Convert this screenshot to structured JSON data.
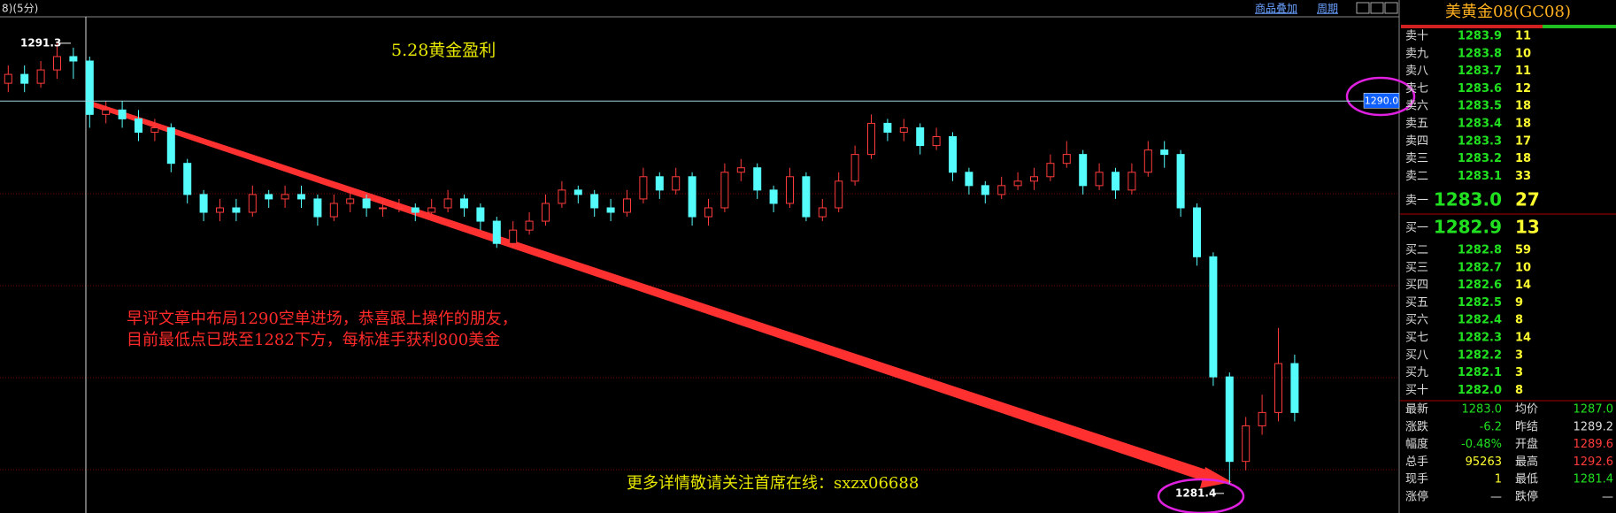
{
  "chart_data": {
    "type": "candlestick",
    "title": "5.28黄金盈利",
    "period": "8)(5分)",
    "annotations": [
      "早评文章中布局1290空单进场，恭喜跟上操作的朋友，",
      "目前最低点已跌至1282下方，每标准手获利800美金"
    ],
    "footer": "更多详情敬请关注首席在线：sxzx06688",
    "links": [
      "商品叠加",
      "周期"
    ],
    "high_mark": 1291.3,
    "low_mark": 1281.4,
    "price_line": {
      "value": 1290,
      "label": "1290.0"
    },
    "up_color": "#ff3b3b",
    "down_color": "#54fcfc",
    "ylim": [
      1280.9,
      1291.9
    ],
    "open": [
      1290.4,
      1290.6,
      1290.4,
      1290.7,
      1291.0,
      1290.9,
      1289.7,
      1289.8,
      1289.6,
      1289.3,
      1289.4,
      1288.6,
      1287.9,
      1287.5,
      1287.6,
      1287.5,
      1287.9,
      1287.8,
      1287.9,
      1287.8,
      1287.4,
      1287.7,
      1287.8,
      1287.6,
      1287.6,
      1287.6,
      1287.5,
      1287.6,
      1287.8,
      1287.6,
      1287.3,
      1286.8,
      1287.1,
      1287.3,
      1287.7,
      1288.0,
      1287.9,
      1287.6,
      1287.5,
      1287.8,
      1288.3,
      1288.0,
      1288.3,
      1287.4,
      1287.6,
      1288.4,
      1288.5,
      1288.0,
      1287.7,
      1288.3,
      1287.4,
      1287.6,
      1288.2,
      1288.8,
      1289.5,
      1289.3,
      1289.4,
      1289.0,
      1289.2,
      1288.4,
      1288.1,
      1287.9,
      1288.1,
      1288.2,
      1288.3,
      1288.6,
      1288.8,
      1288.1,
      1288.4,
      1288.0,
      1288.4,
      1288.9,
      1288.8,
      1287.6,
      1286.5,
      1283.8,
      1281.9,
      1282.7,
      1283.0,
      1284.1
    ],
    "high": [
      1290.8,
      1290.8,
      1290.9,
      1291.3,
      1291.2,
      1291.0,
      1290.0,
      1290.0,
      1289.8,
      1289.6,
      1289.5,
      1288.7,
      1288.0,
      1287.8,
      1287.8,
      1288.1,
      1288.0,
      1288.1,
      1288.1,
      1287.9,
      1287.9,
      1288.0,
      1287.9,
      1287.8,
      1287.8,
      1287.7,
      1287.8,
      1288.0,
      1287.9,
      1287.7,
      1287.4,
      1287.3,
      1287.5,
      1287.9,
      1288.2,
      1288.1,
      1288.0,
      1287.8,
      1288.0,
      1288.5,
      1288.4,
      1288.5,
      1288.4,
      1287.8,
      1288.6,
      1288.7,
      1288.6,
      1288.1,
      1288.5,
      1288.4,
      1287.8,
      1288.4,
      1289.0,
      1289.7,
      1289.6,
      1289.6,
      1289.5,
      1289.4,
      1289.3,
      1288.5,
      1288.2,
      1288.3,
      1288.4,
      1288.5,
      1288.8,
      1289.1,
      1288.9,
      1288.6,
      1288.5,
      1288.6,
      1289.1,
      1289.1,
      1288.9,
      1287.7,
      1286.6,
      1283.9,
      1282.9,
      1283.4,
      1284.9,
      1284.3
    ],
    "low": [
      1290.2,
      1290.2,
      1290.3,
      1290.5,
      1290.5,
      1289.4,
      1289.5,
      1289.4,
      1289.1,
      1289.1,
      1288.4,
      1287.7,
      1287.3,
      1287.3,
      1287.3,
      1287.4,
      1287.6,
      1287.6,
      1287.6,
      1287.2,
      1287.3,
      1287.5,
      1287.4,
      1287.4,
      1287.5,
      1287.3,
      1287.4,
      1287.5,
      1287.4,
      1287.1,
      1286.7,
      1286.7,
      1287.0,
      1287.2,
      1287.6,
      1287.7,
      1287.4,
      1287.3,
      1287.4,
      1287.7,
      1287.8,
      1287.9,
      1287.2,
      1287.2,
      1287.5,
      1288.2,
      1287.8,
      1287.5,
      1287.6,
      1287.3,
      1287.3,
      1287.5,
      1288.1,
      1288.7,
      1289.1,
      1289.1,
      1288.8,
      1288.9,
      1288.2,
      1287.9,
      1287.7,
      1287.8,
      1288.0,
      1288.0,
      1288.2,
      1288.5,
      1287.9,
      1288.0,
      1287.8,
      1287.9,
      1288.3,
      1288.5,
      1287.4,
      1286.3,
      1283.6,
      1281.4,
      1281.7,
      1282.5,
      1282.8,
      1282.8
    ],
    "close": [
      1290.6,
      1290.4,
      1290.7,
      1291.0,
      1290.9,
      1289.7,
      1289.8,
      1289.6,
      1289.3,
      1289.4,
      1288.6,
      1287.9,
      1287.5,
      1287.6,
      1287.5,
      1287.9,
      1287.8,
      1287.9,
      1287.8,
      1287.4,
      1287.7,
      1287.8,
      1287.6,
      1287.6,
      1287.6,
      1287.5,
      1287.6,
      1287.8,
      1287.6,
      1287.3,
      1286.8,
      1287.1,
      1287.3,
      1287.7,
      1288.0,
      1287.9,
      1287.6,
      1287.5,
      1287.8,
      1288.3,
      1288.0,
      1288.3,
      1287.4,
      1287.6,
      1288.4,
      1288.5,
      1288.0,
      1287.7,
      1288.3,
      1287.4,
      1287.6,
      1288.2,
      1288.8,
      1289.5,
      1289.3,
      1289.4,
      1289.0,
      1289.2,
      1288.4,
      1288.1,
      1287.9,
      1288.1,
      1288.2,
      1288.3,
      1288.6,
      1288.8,
      1288.1,
      1288.4,
      1288.0,
      1288.4,
      1288.9,
      1288.8,
      1287.6,
      1286.5,
      1283.8,
      1281.9,
      1282.7,
      1283.0,
      1284.1,
      1283.0
    ]
  },
  "quote_panel": {
    "title": "美黄金08(GC08)",
    "asks": [
      {
        "label": "卖十",
        "price": "1283.9",
        "volume": "11"
      },
      {
        "label": "卖九",
        "price": "1283.8",
        "volume": "10"
      },
      {
        "label": "卖八",
        "price": "1283.7",
        "volume": "11"
      },
      {
        "label": "卖七",
        "price": "1283.6",
        "volume": "12"
      },
      {
        "label": "卖六",
        "price": "1283.5",
        "volume": "18"
      },
      {
        "label": "卖五",
        "price": "1283.4",
        "volume": "18"
      },
      {
        "label": "卖四",
        "price": "1283.3",
        "volume": "17"
      },
      {
        "label": "卖三",
        "price": "1283.2",
        "volume": "18"
      },
      {
        "label": "卖二",
        "price": "1283.1",
        "volume": "33"
      },
      {
        "label": "卖一",
        "price": "1283.0",
        "volume": "27"
      }
    ],
    "bids": [
      {
        "label": "买一",
        "price": "1282.9",
        "volume": "13"
      },
      {
        "label": "买二",
        "price": "1282.8",
        "volume": "59"
      },
      {
        "label": "买三",
        "price": "1282.7",
        "volume": "10"
      },
      {
        "label": "买四",
        "price": "1282.6",
        "volume": "14"
      },
      {
        "label": "买五",
        "price": "1282.5",
        "volume": "9"
      },
      {
        "label": "买六",
        "price": "1282.4",
        "volume": "8"
      },
      {
        "label": "买七",
        "price": "1282.3",
        "volume": "14"
      },
      {
        "label": "买八",
        "price": "1282.2",
        "volume": "3"
      },
      {
        "label": "买九",
        "price": "1282.1",
        "volume": "3"
      },
      {
        "label": "买十",
        "price": "1282.0",
        "volume": "8"
      }
    ],
    "stats": [
      {
        "label": "最新",
        "value": "1283.0",
        "label2": "均价",
        "value2": "1287.0"
      },
      {
        "label": "涨跌",
        "value": "-6.2",
        "label2": "昨结",
        "value2": "1289.2"
      },
      {
        "label": "幅度",
        "value": "-0.48%",
        "label2": "开盘",
        "value2": "1289.6"
      },
      {
        "label": "总手",
        "value": "95263",
        "label2": "最高",
        "value2": "1292.6"
      },
      {
        "label": "现手",
        "value": "1",
        "label2": "最低",
        "value2": "1281.4"
      },
      {
        "label": "涨停",
        "value": "—",
        "label2": "跌停",
        "value2": "—"
      }
    ]
  }
}
